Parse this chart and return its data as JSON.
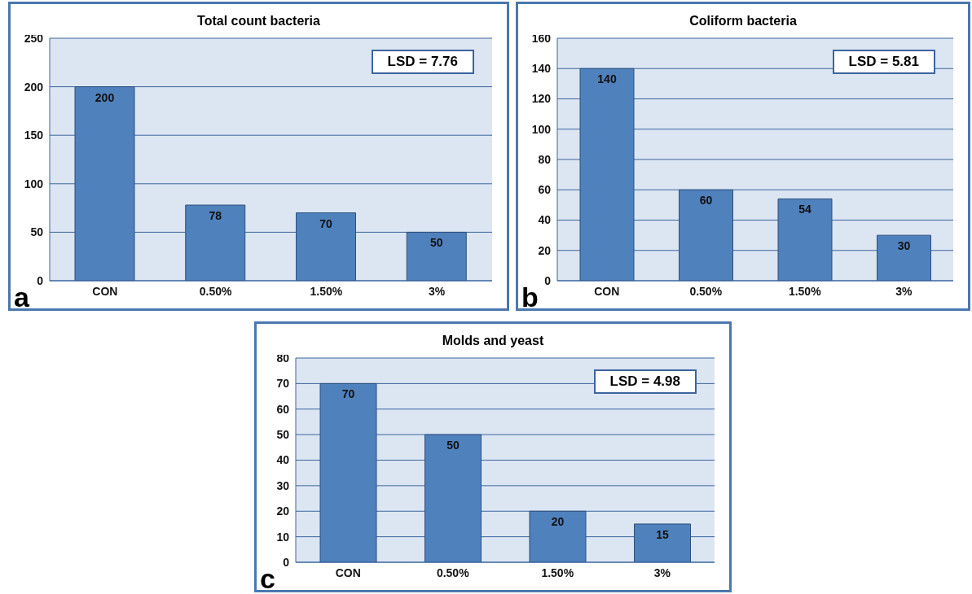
{
  "chart_data": [
    {
      "type": "bar",
      "title": "Total count bacteria",
      "categories": [
        "CON",
        "0.50%",
        "1.50%",
        "3%"
      ],
      "values": [
        200,
        78,
        70,
        50
      ],
      "color": "#4f81bd",
      "ylim": [
        0,
        250
      ],
      "yticks": [
        0,
        50,
        100,
        150,
        200,
        250
      ],
      "grid": "y",
      "data_labels": true,
      "annotations": [
        "LSD = 7.76",
        "a"
      ]
    },
    {
      "type": "bar",
      "title": "Coliform bacteria",
      "categories": [
        "CON",
        "0.50%",
        "1.50%",
        "3%"
      ],
      "values": [
        140,
        60,
        54,
        30
      ],
      "color": "#4f81bd",
      "ylim": [
        0,
        160
      ],
      "yticks": [
        0,
        20,
        40,
        60,
        80,
        100,
        120,
        140,
        160
      ],
      "grid": "y",
      "data_labels": true,
      "annotations": [
        "LSD = 5.81",
        "b"
      ]
    },
    {
      "type": "bar",
      "title": "Molds and yeast",
      "categories": [
        "CON",
        "0.50%",
        "1.50%",
        "3%"
      ],
      "values": [
        70,
        50,
        20,
        15
      ],
      "color": "#4f81bd",
      "ylim": [
        0,
        80
      ],
      "yticks": [
        0,
        10,
        20,
        30,
        40,
        50,
        60,
        70,
        80
      ],
      "grid": "y",
      "data_labels": true,
      "annotations": [
        "LSD = 4.98",
        "c"
      ]
    }
  ]
}
